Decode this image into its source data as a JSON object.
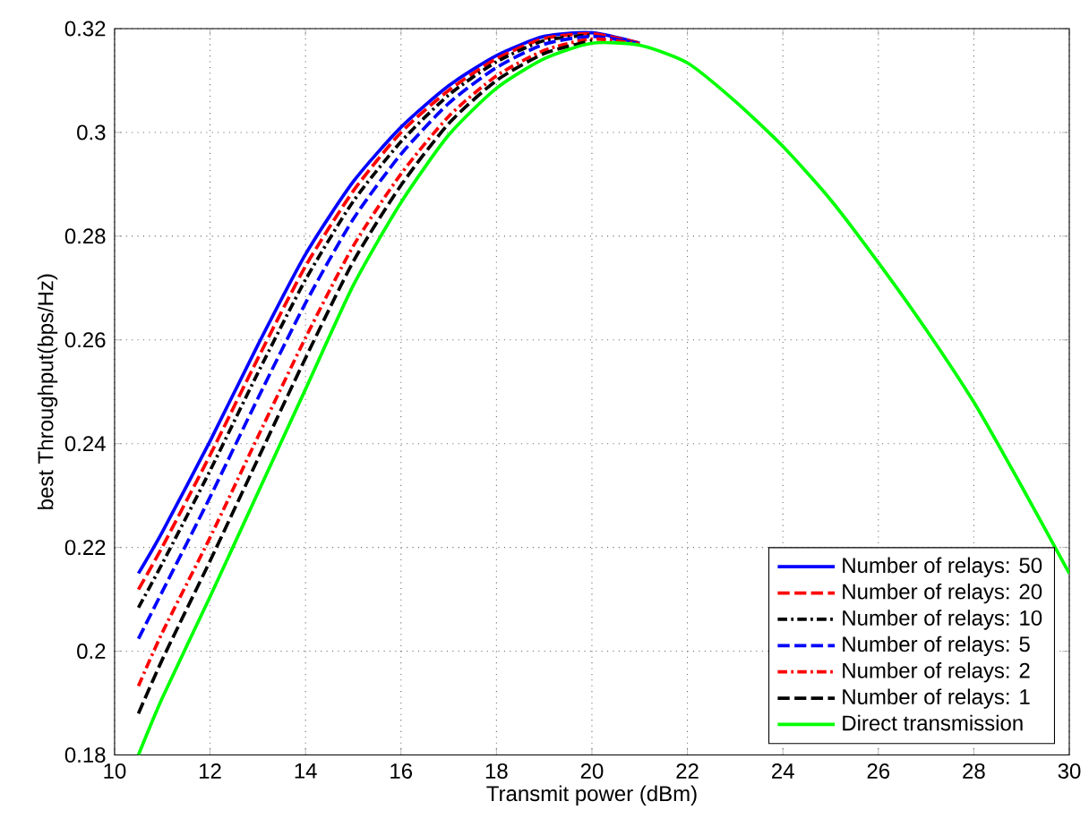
{
  "chart_data": {
    "type": "line",
    "xlabel": "Transmit power (dBm)",
    "ylabel": "best Throughput(bps/Hz)",
    "x": [
      10.5,
      11,
      12,
      13,
      14,
      15,
      16,
      17,
      18,
      19,
      20,
      21,
      22,
      23,
      24,
      25,
      26,
      27,
      28,
      29,
      30
    ],
    "xlim": [
      10,
      30
    ],
    "ylim": [
      0.18,
      0.32
    ],
    "xticks": [
      10,
      12,
      14,
      16,
      18,
      20,
      22,
      24,
      26,
      28,
      30
    ],
    "yticks": [
      0.18,
      0.2,
      0.22,
      0.24,
      0.26,
      0.28,
      0.3,
      0.32
    ],
    "grid": true,
    "legend": "bottom right",
    "marker": "none",
    "series": [
      {
        "name": "Number of relays: 50",
        "color": "#0000ff",
        "line_style": "solid",
        "values": [
          0.215,
          0.223,
          0.2405,
          0.259,
          0.2765,
          0.2905,
          0.301,
          0.309,
          0.3148,
          0.3185,
          0.3192,
          0.3172,
          null,
          null,
          null,
          null,
          null,
          null,
          null,
          null,
          null
        ]
      },
      {
        "name": "Number of relays: 20",
        "color": "#ff0000",
        "line_style": "dashed",
        "values": [
          0.2119,
          0.2201,
          0.2378,
          0.2564,
          0.2742,
          0.2887,
          0.3,
          0.3081,
          0.3142,
          0.3181,
          0.319,
          0.3172,
          null,
          null,
          null,
          null,
          null,
          null,
          null,
          null,
          null
        ]
      },
      {
        "name": "Number of relays: 10",
        "color": "#000000",
        "line_style": "dashdot",
        "values": [
          0.2084,
          0.2169,
          0.2348,
          0.2536,
          0.2716,
          0.2867,
          0.2982,
          0.3072,
          0.3136,
          0.3177,
          0.3188,
          null,
          null,
          null,
          null,
          null,
          null,
          null,
          null,
          null,
          null
        ]
      },
      {
        "name": "Number of relays: 5",
        "color": "#0000ff",
        "line_style": "dashed",
        "values": [
          0.2024,
          0.2115,
          0.2297,
          0.2487,
          0.2671,
          0.2833,
          0.2958,
          0.3056,
          0.3125,
          0.317,
          0.3185,
          0.3171,
          null,
          null,
          null,
          null,
          null,
          null,
          null,
          null,
          null
        ]
      },
      {
        "name": "Number of relays: 2",
        "color": "#ff0000",
        "line_style": "dashdot",
        "values": [
          0.1933,
          0.2036,
          0.2219,
          0.2413,
          0.2604,
          0.2781,
          0.292,
          0.3031,
          0.3109,
          0.3158,
          0.318,
          0.317,
          null,
          null,
          null,
          null,
          null,
          null,
          null,
          null,
          null
        ]
      },
      {
        "name": "Number of relays: 1",
        "color": "#000000",
        "line_style": "dashed",
        "values": [
          0.188,
          0.1984,
          0.2174,
          0.237,
          0.2565,
          0.2751,
          0.2898,
          0.3017,
          0.31,
          0.3152,
          0.3177,
          null,
          null,
          null,
          null,
          null,
          null,
          null,
          null,
          null,
          null
        ]
      },
      {
        "name": "Direct transmission",
        "color": "#00ff00",
        "line_style": "solid",
        "values": [
          0.18,
          0.191,
          0.2105,
          0.2305,
          0.2505,
          0.2705,
          0.2865,
          0.2995,
          0.3085,
          0.3142,
          0.3172,
          0.3168,
          0.3134,
          0.306,
          0.2973,
          0.287,
          0.2749,
          0.262,
          0.248,
          0.2318,
          0.215
        ]
      }
    ]
  }
}
